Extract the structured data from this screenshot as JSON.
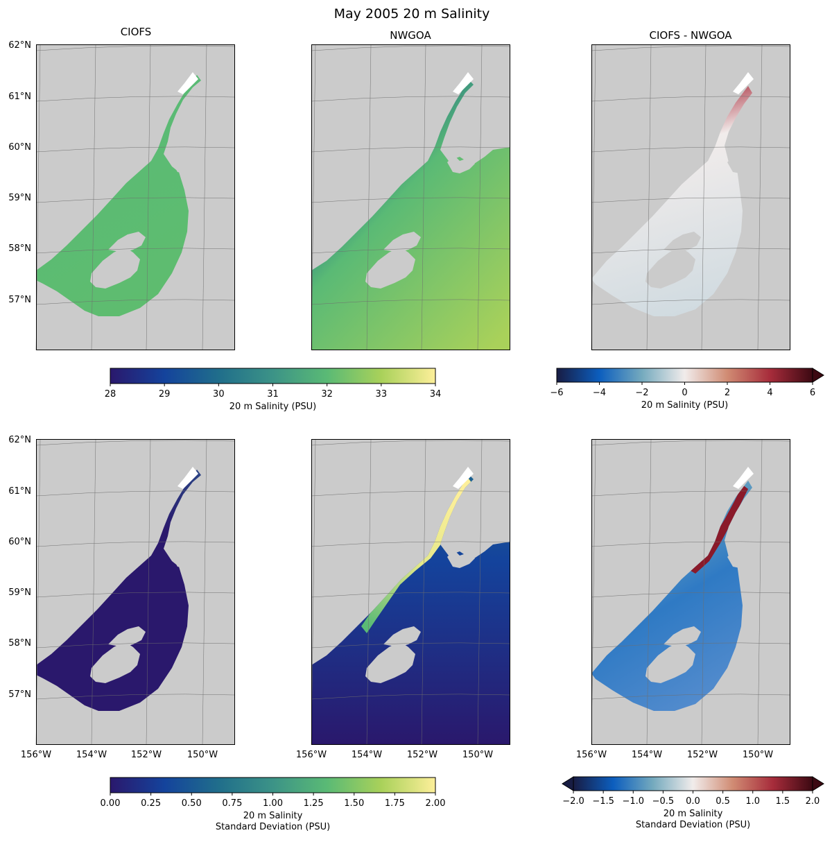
{
  "figure": {
    "title": "May 2005 20 m Salinity"
  },
  "panels": {
    "top_titles": [
      "CIOFS",
      "NWGOA",
      "CIOFS - NWGOA"
    ],
    "lat_labels": [
      "62°N",
      "61°N",
      "60°N",
      "59°N",
      "58°N",
      "57°N"
    ],
    "lon_labels": [
      "156°W",
      "154°W",
      "152°W",
      "150°W"
    ]
  },
  "colorbars": {
    "top_left": {
      "label_lines": [
        "20 m Salinity (PSU)"
      ],
      "ticks": [
        "28",
        "29",
        "30",
        "31",
        "32",
        "33",
        "34"
      ],
      "range": [
        28,
        34
      ],
      "colormap": "haline"
    },
    "top_right": {
      "label_lines": [
        "20 m Salinity (PSU)"
      ],
      "ticks": [
        "−6",
        "−4",
        "−2",
        "0",
        "2",
        "4",
        "6"
      ],
      "range": [
        -6,
        6
      ],
      "colormap": "balance",
      "extend": "max"
    },
    "bottom_left": {
      "label_lines": [
        "20 m Salinity",
        "Standard Deviation (PSU)"
      ],
      "ticks": [
        "0.00",
        "0.25",
        "0.50",
        "0.75",
        "1.00",
        "1.25",
        "1.50",
        "1.75",
        "2.00"
      ],
      "range": [
        0,
        2
      ],
      "colormap": "haline"
    },
    "bottom_right": {
      "label_lines": [
        "20 m Salinity",
        "Standard Deviation (PSU)"
      ],
      "ticks": [
        "−2.0",
        "−1.5",
        "−1.0",
        "−0.5",
        "0.0",
        "0.5",
        "1.0",
        "1.5",
        "2.0"
      ],
      "range": [
        -2,
        2
      ],
      "colormap": "balance",
      "extend": "both"
    }
  },
  "colors": {
    "land": "#cbcbcb",
    "grid": "#6e6e6e",
    "haline_stops": [
      "#2a186c",
      "#14439c",
      "#206e8b",
      "#3c9387",
      "#5aba75",
      "#a9d15a",
      "#fdef9a"
    ],
    "balance_stops": [
      "#181c43",
      "#0c5ebe",
      "#75aabe",
      "#f1eceb",
      "#d08b73",
      "#a72c3b",
      "#3c0912"
    ]
  }
}
